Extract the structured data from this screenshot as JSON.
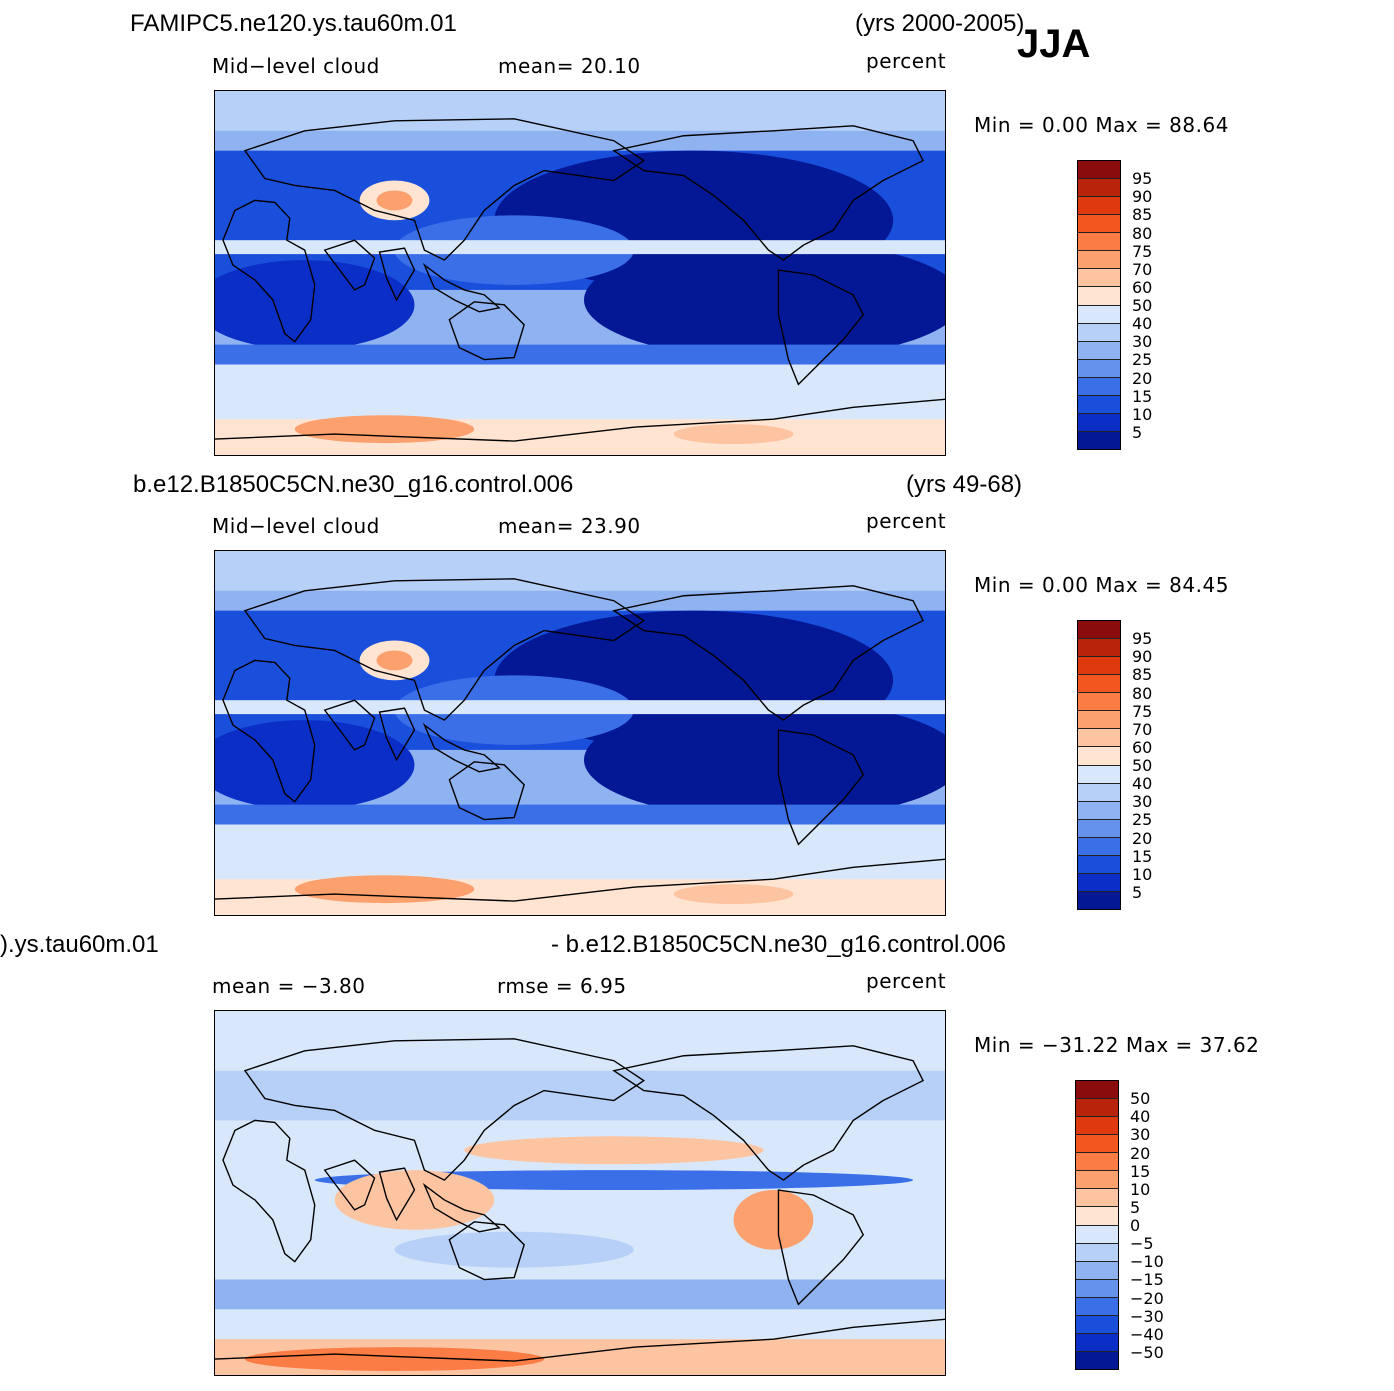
{
  "season": "JJA",
  "panels": [
    {
      "id": "top",
      "case_name": "FAMIPC5.ne120.ys.tau60m.01",
      "years": "(yrs 2000-2005)",
      "variable": "Mid−level  cloud",
      "stat_text": "mean=   20.10",
      "stat2_text": "",
      "units": "percent",
      "range_text": "Min  =     0.00  Max  =    88.64",
      "map_kind": "mean",
      "colorbar": {
        "labels": [
          "95",
          "90",
          "85",
          "80",
          "75",
          "70",
          "60",
          "50",
          "40",
          "30",
          "25",
          "20",
          "15",
          "10",
          "5"
        ],
        "colors": [
          "#8b0c0c",
          "#b7230b",
          "#de3a0e",
          "#f2571f",
          "#fb7c44",
          "#fca06e",
          "#fdc4a2",
          "#ffe4d2",
          "#d8e8fa",
          "#b7d0f7",
          "#8fb3f0",
          "#6592ea",
          "#3a6fe8",
          "#1a4fdc",
          "#0a2ec6",
          "#041896"
        ]
      }
    },
    {
      "id": "middle",
      "case_name": "b.e12.B1850C5CN.ne30_g16.control.006",
      "years": "(yrs 49-68)",
      "variable": "Mid−level  cloud",
      "stat_text": "mean=   23.90",
      "stat2_text": "",
      "units": "percent",
      "range_text": "Min  =     0.00  Max  =    84.45",
      "map_kind": "mean",
      "colorbar": {
        "labels": [
          "95",
          "90",
          "85",
          "80",
          "75",
          "70",
          "60",
          "50",
          "40",
          "30",
          "25",
          "20",
          "15",
          "10",
          "5"
        ],
        "colors": [
          "#8b0c0c",
          "#b7230b",
          "#de3a0e",
          "#f2571f",
          "#fb7c44",
          "#fca06e",
          "#fdc4a2",
          "#ffe4d2",
          "#d8e8fa",
          "#b7d0f7",
          "#8fb3f0",
          "#6592ea",
          "#3a6fe8",
          "#1a4fdc",
          "#0a2ec6",
          "#041896"
        ]
      }
    },
    {
      "id": "bottom",
      "case_name": ").ys.tau60m.01",
      "years": "- b.e12.B1850C5CN.ne30_g16.control.006",
      "variable": "",
      "stat_text": "mean  =    −3.80",
      "stat2_text": "rmse  =      6.95",
      "units": "percent",
      "range_text": "Min  = −31.22  Max  =    37.62",
      "map_kind": "diff",
      "colorbar": {
        "labels": [
          "50",
          "40",
          "30",
          "20",
          "15",
          "10",
          "5",
          "0",
          "−5",
          "−10",
          "−15",
          "−20",
          "−30",
          "−40",
          "−50"
        ],
        "colors": [
          "#8b0c0c",
          "#b7230b",
          "#de3a0e",
          "#f2571f",
          "#fb7c44",
          "#fca06e",
          "#fdc4a2",
          "#ffe4d2",
          "#d8e8fa",
          "#b7d0f7",
          "#8fb3f0",
          "#6592ea",
          "#3a6fe8",
          "#1a4fdc",
          "#0a2ec6",
          "#041896"
        ]
      }
    }
  ]
}
